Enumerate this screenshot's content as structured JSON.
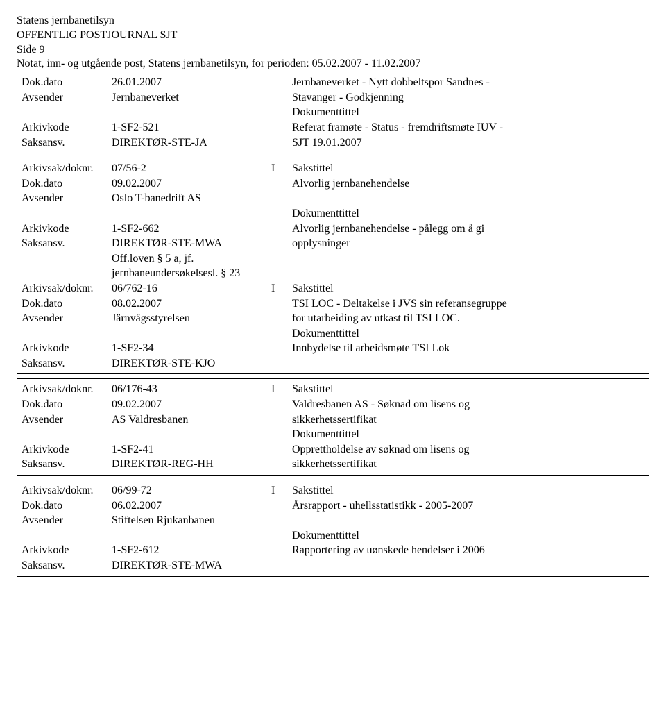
{
  "header": {
    "org": "Statens jernbanetilsyn",
    "title": "OFFENTLIG POSTJOURNAL SJT",
    "side": "Side 9",
    "subtitle": "Notat, inn- og utgående post, Statens jernbanetilsyn, for perioden: 05.02.2007 - 11.02.2007"
  },
  "labels": {
    "dokdato": "Dok.dato",
    "avsender": "Avsender",
    "arkivkode": "Arkivkode",
    "saksansv": "Saksansv.",
    "arkivsak": "Arkivsak/doknr.",
    "sakstittel": "Sakstittel",
    "dokumenttittel": "Dokumenttittel"
  },
  "entries": [
    {
      "top": {
        "dokdato": "26.01.2007",
        "avsender": "Jernbaneverket",
        "arkivkode": "1-SF2-521",
        "saksansv": "DIREKTØR-STE-JA",
        "io": "",
        "saks1": "Jernbaneverket - Nytt dobbeltspor Sandnes -",
        "saks2": "Stavanger - Godkjenning",
        "doku1": "Referat framøte - Status - fremdriftsmøte IUV -",
        "doku2": "SJT 19.01.2007",
        "off": []
      }
    },
    {
      "top": {
        "arkivsak": "07/56-2",
        "dokdato": "09.02.2007",
        "avsender": "Oslo T-banedrift AS",
        "arkivkode": "1-SF2-662",
        "saksansv": "DIREKTØR-STE-MWA",
        "io": "I",
        "saks1": "",
        "saks2": "Alvorlig jernbanehendelse",
        "doku1": "Alvorlig jernbanehendelse - pålegg om å gi",
        "doku2": "opplysninger",
        "off": [
          "Off.loven § 5 a, jf.",
          "jernbaneundersøkelsesl. § 23"
        ]
      },
      "second": {
        "arkivsak": "06/762-16",
        "dokdato": "08.02.2007",
        "avsender": "Järnvägsstyrelsen",
        "arkivkode": "1-SF2-34",
        "saksansv": "DIREKTØR-STE-KJO",
        "io": "I",
        "saks1": "",
        "saks2": "TSI LOC - Deltakelse i JVS sin referansegruppe",
        "saks3": "for utarbeiding av utkast til TSI LOC.",
        "doku1": "Innbydelse til arbeidsmøte TSI Lok",
        "doku2": ""
      }
    },
    {
      "top": {
        "arkivsak": "06/176-43",
        "dokdato": "09.02.2007",
        "avsender": "AS Valdresbanen",
        "arkivkode": "1-SF2-41",
        "saksansv": "DIREKTØR-REG-HH",
        "io": "I",
        "saks1": "",
        "saks2": "Valdresbanen AS - Søknad om lisens og",
        "saks3": "sikkerhetssertifikat",
        "doku1": "Opprettholdelse av søknad om lisens og",
        "doku2": "sikkerhetssertifikat",
        "off": []
      }
    },
    {
      "top": {
        "arkivsak": "06/99-72",
        "dokdato": "06.02.2007",
        "avsender": "Stiftelsen Rjukanbanen",
        "arkivkode": "1-SF2-612",
        "saksansv": "DIREKTØR-STE-MWA",
        "io": "I",
        "saks1": "",
        "saks2": "Årsrapport - uhellsstatistikk - 2005-2007",
        "doku1": "Rapportering av uønskede hendelser i 2006",
        "doku2": "",
        "off": []
      }
    }
  ]
}
